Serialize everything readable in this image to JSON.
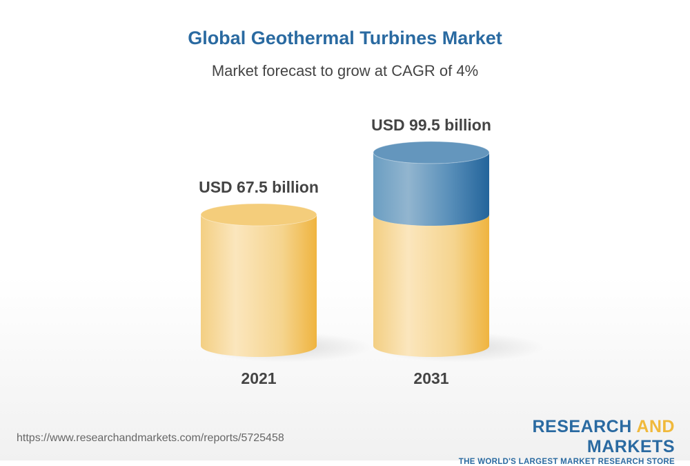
{
  "header": {
    "title": "Global Geothermal Turbines Market",
    "subtitle": "Market forecast to grow at CAGR of 4%"
  },
  "chart_data": {
    "type": "bar",
    "style": "3d-cylinder",
    "categories": [
      "2021",
      "2031"
    ],
    "values": [
      67.5,
      99.5
    ],
    "unit": "USD billion",
    "data_labels": [
      "USD 67.5 billion",
      "USD 99.5 billion"
    ],
    "title": "Global Geothermal Turbines Market",
    "subtitle": "Market forecast to grow at CAGR of 4%",
    "colors": {
      "base": "#f0b93c",
      "growth": "#2a6aa1"
    },
    "grid": false
  },
  "footer": {
    "url": "https://www.researchandmarkets.com/reports/5725458",
    "logo_part1": "RESEARCH ",
    "logo_part2": "AND",
    "logo_part3": " MARKETS",
    "tagline": "THE WORLD'S LARGEST MARKET RESEARCH STORE"
  }
}
